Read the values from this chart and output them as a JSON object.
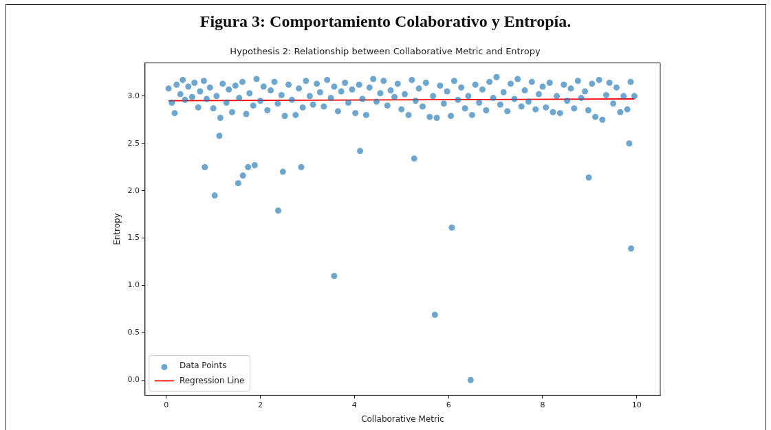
{
  "chart_data": {
    "type": "scatter",
    "title": "Hypothesis 2: Relationship between Collaborative Metric and Entropy",
    "xlabel": "Collaborative Metric",
    "ylabel": "Entropy",
    "annotations": [
      "Figura 3: Comportamiento Colaborativo y Entropía."
    ],
    "xlim": [
      -0.45,
      10.5
    ],
    "ylim": [
      -0.16,
      3.35
    ],
    "xticks": [
      0,
      2,
      4,
      6,
      8,
      10
    ],
    "yticks": [
      {
        "value": 0,
        "label": "0.0"
      },
      {
        "value": 0.5,
        "label": "0.5"
      },
      {
        "value": 1,
        "label": "1.0"
      },
      {
        "value": 1.5,
        "label": "1.5"
      },
      {
        "value": 2,
        "label": "2.0"
      },
      {
        "value": 2.5,
        "label": "2.5"
      },
      {
        "value": 3,
        "label": "3.0"
      }
    ],
    "grid": false,
    "legend": "bottom left",
    "marker": "circle",
    "series": [
      {
        "name": "Data Points",
        "color": "#1f77b4",
        "x": [
          0.05,
          0.12,
          0.18,
          0.22,
          0.3,
          0.35,
          0.4,
          0.47,
          0.55,
          0.6,
          0.68,
          0.72,
          0.8,
          0.86,
          0.93,
          1.0,
          1.07,
          1.15,
          1.2,
          1.28,
          1.33,
          1.4,
          1.47,
          1.55,
          1.62,
          1.7,
          1.77,
          1.85,
          1.92,
          2.0,
          2.07,
          2.15,
          2.22,
          2.3,
          2.37,
          2.45,
          2.52,
          2.6,
          2.67,
          2.75,
          2.82,
          2.9,
          2.97,
          3.05,
          3.12,
          3.2,
          3.27,
          3.35,
          3.42,
          3.5,
          3.57,
          3.65,
          3.72,
          3.8,
          3.87,
          3.95,
          4.02,
          4.1,
          4.17,
          4.25,
          4.32,
          4.4,
          4.47,
          4.55,
          4.62,
          4.7,
          4.77,
          4.85,
          4.92,
          5.0,
          5.07,
          5.15,
          5.22,
          5.3,
          5.37,
          5.45,
          5.52,
          5.6,
          5.67,
          5.75,
          5.82,
          5.9,
          5.97,
          6.05,
          6.12,
          6.2,
          6.27,
          6.35,
          6.42,
          6.5,
          6.57,
          6.65,
          6.72,
          6.8,
          6.87,
          6.95,
          7.02,
          7.1,
          7.17,
          7.25,
          7.32,
          7.4,
          7.47,
          7.55,
          7.62,
          7.7,
          7.77,
          7.85,
          7.92,
          8.0,
          8.07,
          8.15,
          8.22,
          8.3,
          8.37,
          8.45,
          8.52,
          8.6,
          8.67,
          8.75,
          8.82,
          8.9,
          8.97,
          9.05,
          9.12,
          9.2,
          9.27,
          9.35,
          9.42,
          9.5,
          9.57,
          9.65,
          9.72,
          9.8,
          9.87,
          9.95,
          0.82,
          1.13,
          1.03,
          1.53,
          1.63,
          1.74,
          1.88,
          2.38,
          2.48,
          2.87,
          3.57,
          4.12,
          5.27,
          5.71,
          6.07,
          6.47,
          8.98,
          9.84,
          9.88
        ],
        "values": [
          3.08,
          2.93,
          2.82,
          3.12,
          3.02,
          3.17,
          2.96,
          3.1,
          2.99,
          3.14,
          2.88,
          3.05,
          3.16,
          2.97,
          3.09,
          2.87,
          3.0,
          2.77,
          3.13,
          2.93,
          3.07,
          2.83,
          3.11,
          2.98,
          3.15,
          2.81,
          3.03,
          2.9,
          3.18,
          2.95,
          3.1,
          2.85,
          3.06,
          3.15,
          2.92,
          3.01,
          2.79,
          3.12,
          2.96,
          2.8,
          3.08,
          2.88,
          3.16,
          3.0,
          2.91,
          3.13,
          3.04,
          2.89,
          3.17,
          2.98,
          3.1,
          2.84,
          3.05,
          3.14,
          2.93,
          3.07,
          2.82,
          3.12,
          2.97,
          2.8,
          3.09,
          3.18,
          2.94,
          3.03,
          3.16,
          2.9,
          3.06,
          2.99,
          3.13,
          2.86,
          3.02,
          2.8,
          3.17,
          2.95,
          3.08,
          2.89,
          3.14,
          2.78,
          3.0,
          2.77,
          3.11,
          2.92,
          3.05,
          2.79,
          3.16,
          2.96,
          3.09,
          2.87,
          3.0,
          2.8,
          3.12,
          2.93,
          3.07,
          2.85,
          3.15,
          2.98,
          3.2,
          2.91,
          3.04,
          2.84,
          3.13,
          2.97,
          3.18,
          2.89,
          3.06,
          2.94,
          3.15,
          2.86,
          3.02,
          3.1,
          2.88,
          3.14,
          2.83,
          3.0,
          2.82,
          3.12,
          2.95,
          3.08,
          2.87,
          3.16,
          2.98,
          3.05,
          2.85,
          3.13,
          2.78,
          3.17,
          2.75,
          3.01,
          3.14,
          2.92,
          3.09,
          2.83,
          3.0,
          2.86,
          3.15,
          3.0,
          2.25,
          2.58,
          1.95,
          2.08,
          2.16,
          2.25,
          2.27,
          1.79,
          2.2,
          2.25,
          1.1,
          2.42,
          2.34,
          0.69,
          1.61,
          0.0,
          2.14,
          2.5,
          1.39
        ]
      },
      {
        "name": "Regression Line",
        "type": "line",
        "color": "#ff0000",
        "marker": "none",
        "x": [
          0.05,
          9.95
        ],
        "values": [
          2.95,
          2.97
        ]
      }
    ]
  }
}
